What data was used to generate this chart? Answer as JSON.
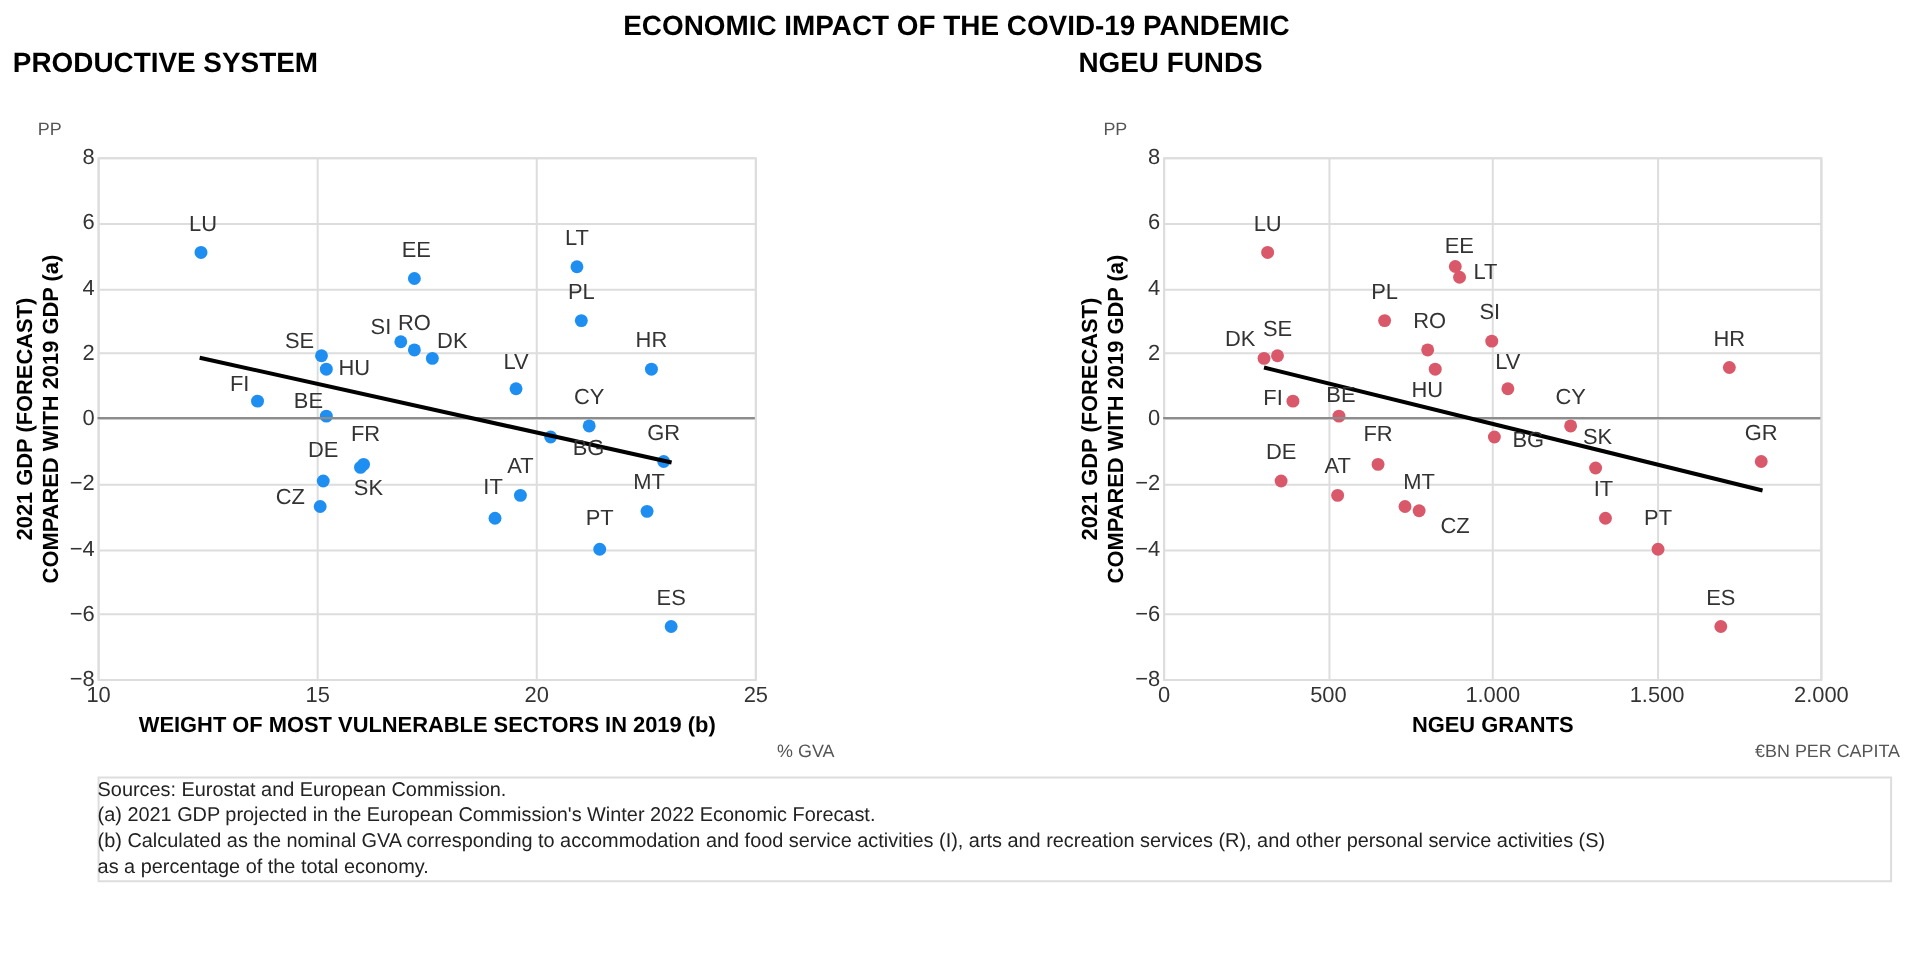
{
  "chart_data": [
    {
      "type": "scatter",
      "title": "PRODUCTIVE SYSTEM",
      "xlabel": "WEIGHT OF MOST VULNERABLE SECTORS IN 2019 (b)",
      "ylabel": "2021 GDP (FORECAST)\nCOMPARED WITH 2019 GDP (a)",
      "xlim": [
        10,
        25
      ],
      "xticks": [
        10,
        15,
        20,
        25
      ],
      "ylim": [
        -8,
        8
      ],
      "yticks": [
        -8,
        -6,
        -4,
        -2,
        0,
        2,
        4,
        6,
        8
      ],
      "grid": true,
      "ref_lines": [
        {
          "axis": "y",
          "value": 0,
          "color": "#8c8c8c"
        }
      ],
      "series": [
        {
          "color": "#1f8ef1",
          "marker": "circle",
          "x": [
            12.36,
            17.23,
            20.94,
            21.04,
            16.92,
            17.23,
            17.64,
            15.11,
            15.22,
            22.64,
            19.55,
            13.65,
            15.22,
            21.22,
            20.34,
            22.92,
            16.07,
            16.0,
            15.15,
            19.65,
            15.08,
            19.07,
            22.54,
            21.46,
            23.09
          ],
          "values": [
            5.08,
            4.28,
            4.64,
            2.99,
            2.34,
            2.09,
            1.83,
            1.91,
            1.5,
            1.5,
            0.9,
            0.52,
            0.06,
            -0.24,
            -0.58,
            -1.33,
            -1.42,
            -1.51,
            -1.93,
            -2.37,
            -2.71,
            -3.07,
            -2.86,
            -4.02,
            -6.39
          ]
        },
        {
          "type": "line",
          "color": "#000000",
          "x": [
            12.33,
            23.1
          ],
          "values": [
            1.85,
            -1.36
          ]
        }
      ],
      "annotations": [
        "PP",
        "% GVA",
        {
          "text": "LU",
          "x": 12.36,
          "y": 5.08
        },
        {
          "text": "EE",
          "x": 17.23,
          "y": 4.28
        },
        {
          "text": "LT",
          "x": 20.94,
          "y": 4.64
        },
        {
          "text": "PL",
          "x": 21.04,
          "y": 2.99
        },
        {
          "text": "SI",
          "x": 16.92,
          "y": 2.34
        },
        {
          "text": "RO",
          "x": 17.23,
          "y": 2.09
        },
        {
          "text": "DK",
          "x": 17.64,
          "y": 1.83
        },
        {
          "text": "SE",
          "x": 15.11,
          "y": 1.91
        },
        {
          "text": "HU",
          "x": 15.22,
          "y": 1.5
        },
        {
          "text": "HR",
          "x": 22.64,
          "y": 1.5
        },
        {
          "text": "LV",
          "x": 19.55,
          "y": 0.9
        },
        {
          "text": "FI",
          "x": 13.65,
          "y": 0.52
        },
        {
          "text": "BE",
          "x": 15.22,
          "y": 0.06
        },
        {
          "text": "CY",
          "x": 21.22,
          "y": -0.24
        },
        {
          "text": "BG",
          "x": 20.34,
          "y": -0.58
        },
        {
          "text": "GR",
          "x": 22.92,
          "y": -1.33
        },
        {
          "text": "FR",
          "x": 16.07,
          "y": -1.42
        },
        {
          "text": "SK",
          "x": 16.0,
          "y": -1.51
        },
        {
          "text": "DE",
          "x": 15.15,
          "y": -1.93
        },
        {
          "text": "AT",
          "x": 19.65,
          "y": -2.37
        },
        {
          "text": "CZ",
          "x": 15.08,
          "y": -2.71
        },
        {
          "text": "IT",
          "x": 19.07,
          "y": -3.07
        },
        {
          "text": "MT",
          "x": 22.54,
          "y": -2.86
        },
        {
          "text": "PT",
          "x": 21.46,
          "y": -4.02
        },
        {
          "text": "ES",
          "x": 23.09,
          "y": -6.39
        }
      ]
    },
    {
      "type": "scatter",
      "title": "NGEU FUNDS",
      "xlabel": "NGEU GRANTS",
      "ylabel": "2021 GDP (FORECAST)\nCOMPARED WITH 2019 GDP (a)",
      "xlim": [
        0,
        2000
      ],
      "xticks": [
        0,
        500,
        {
          "value": 1000,
          "label": "1.000"
        },
        {
          "value": 1500,
          "label": "1.500"
        },
        {
          "value": 2000,
          "label": "2.000"
        }
      ],
      "ylim": [
        -8,
        8
      ],
      "yticks": [
        -8,
        -6,
        -4,
        -2,
        0,
        2,
        4,
        6,
        8
      ],
      "grid": true,
      "ref_lines": [
        {
          "axis": "y",
          "value": 0,
          "color": "#8c8c8c"
        }
      ],
      "series": [
        {
          "color": "#d9596b",
          "marker": "circle",
          "x": [
            318,
            889,
            902,
            674,
            805,
            1000,
            307,
            348,
            828,
            1723,
            1049,
            395,
            535,
            1240,
            1008,
            1820,
            1316,
            654,
            359,
            531,
            736,
            779,
            1346,
            1506,
            1697
          ],
          "values": [
            5.08,
            4.65,
            4.32,
            2.99,
            2.09,
            2.36,
            1.83,
            1.91,
            1.5,
            1.55,
            0.9,
            0.52,
            0.06,
            -0.24,
            -0.58,
            -1.33,
            -1.53,
            -1.42,
            -1.93,
            -2.37,
            -2.71,
            -2.84,
            -3.07,
            -4.02,
            -6.39
          ]
        },
        {
          "type": "line",
          "color": "#000000",
          "x": [
            307,
            1824
          ],
          "values": [
            1.55,
            -2.22
          ]
        }
      ],
      "annotations": [
        "PP",
        "€BN PER CAPITA",
        {
          "text": "LU",
          "x": 318,
          "y": 5.08
        },
        {
          "text": "EE",
          "x": 889,
          "y": 4.65
        },
        {
          "text": "LT",
          "x": 902,
          "y": 4.32
        },
        {
          "text": "PL",
          "x": 674,
          "y": 2.99
        },
        {
          "text": "RO",
          "x": 805,
          "y": 2.09
        },
        {
          "text": "SI",
          "x": 1000,
          "y": 2.36
        },
        {
          "text": "DK",
          "x": 307,
          "y": 1.83
        },
        {
          "text": "SE",
          "x": 348,
          "y": 1.91
        },
        {
          "text": "HU",
          "x": 828,
          "y": 1.5
        },
        {
          "text": "HR",
          "x": 1723,
          "y": 1.55
        },
        {
          "text": "LV",
          "x": 1049,
          "y": 0.9
        },
        {
          "text": "FI",
          "x": 395,
          "y": 0.52
        },
        {
          "text": "BE",
          "x": 535,
          "y": 0.06
        },
        {
          "text": "CY",
          "x": 1240,
          "y": -0.24
        },
        {
          "text": "BG",
          "x": 1008,
          "y": -0.58
        },
        {
          "text": "GR",
          "x": 1820,
          "y": -1.33
        },
        {
          "text": "SK",
          "x": 1316,
          "y": -1.53
        },
        {
          "text": "FR",
          "x": 654,
          "y": -1.42
        },
        {
          "text": "DE",
          "x": 359,
          "y": -1.93
        },
        {
          "text": "AT",
          "x": 531,
          "y": -2.37
        },
        {
          "text": "MT",
          "x": 736,
          "y": -2.71
        },
        {
          "text": "CZ",
          "x": 779,
          "y": -2.84
        },
        {
          "text": "IT",
          "x": 1346,
          "y": -3.07
        },
        {
          "text": "PT",
          "x": 1506,
          "y": -4.02
        },
        {
          "text": "ES",
          "x": 1697,
          "y": -6.39
        }
      ]
    },
    {
      "type": "other",
      "title": "ECONOMIC IMPACT OF THE COVID-19 PANDEMIC",
      "annotations": [
        "Sources: Eurostat and European Commission.",
        "(a) 2021 GDP projected in the European Commission's Winter 2022 Economic Forecast.",
        "(b) Calculated as the nominal GVA corresponding to accommodation and food service activities (I), arts and recreation services (R), and other personal service activities (S)",
        "as a percentage of the total economy."
      ]
    }
  ]
}
